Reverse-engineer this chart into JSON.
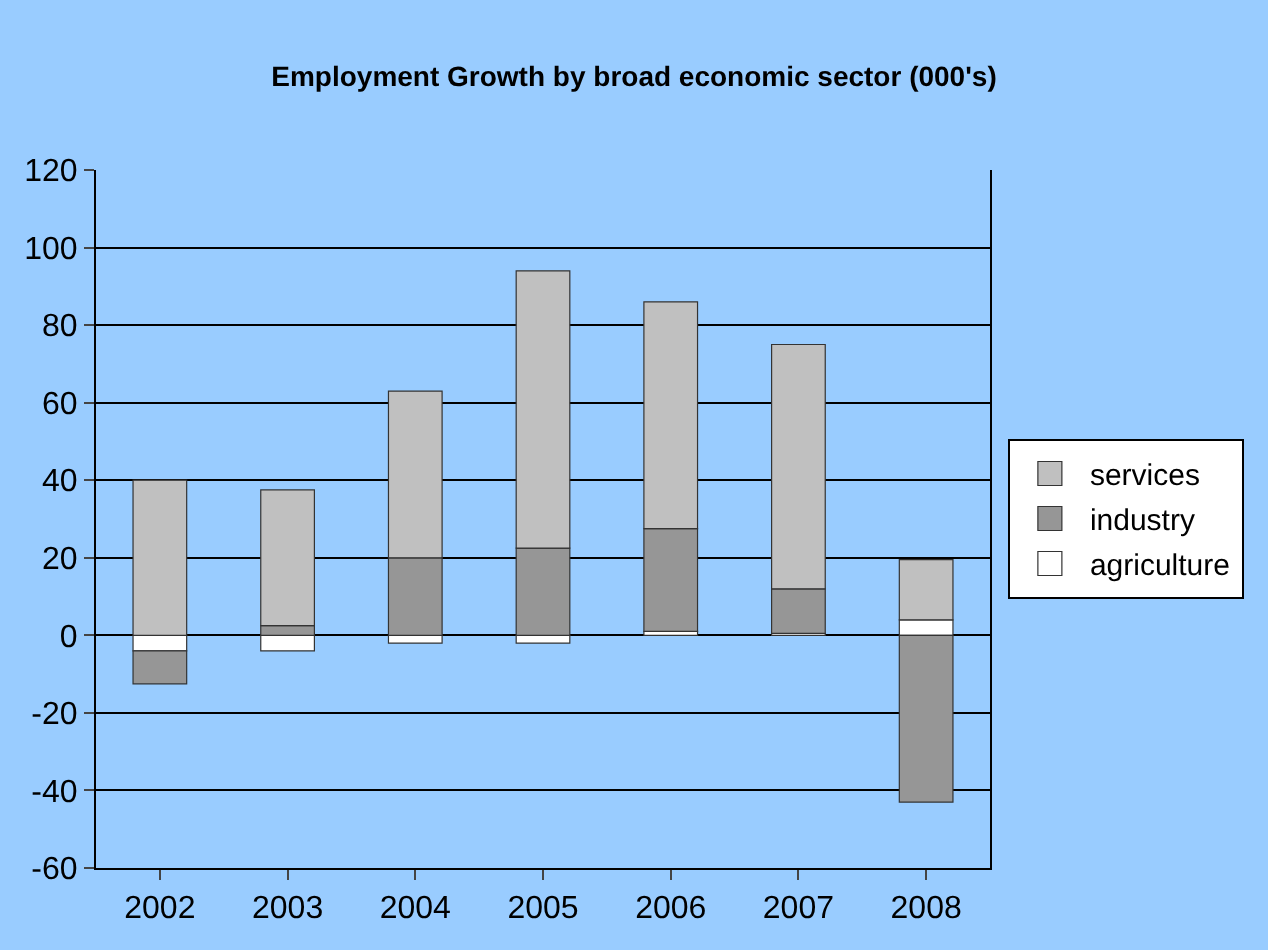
{
  "chart_data": {
    "type": "bar",
    "title": "Employment Growth by broad economic sector (000's)",
    "categories": [
      "2002",
      "2003",
      "2004",
      "2005",
      "2006",
      "2007",
      "2008"
    ],
    "series": [
      {
        "name": "agriculture",
        "color": "#ffffff",
        "values": [
          -4,
          -4,
          -2,
          -2,
          1,
          0.5,
          4
        ]
      },
      {
        "name": "industry",
        "color": "#969696",
        "values": [
          -8.5,
          2.5,
          20,
          22.5,
          26.5,
          11.5,
          -43
        ]
      },
      {
        "name": "services",
        "color": "#c0c0c0",
        "values": [
          40,
          35,
          43,
          71.5,
          58.5,
          63,
          15.5
        ]
      }
    ],
    "stacked": true,
    "ylim": [
      -60,
      120
    ],
    "yticks": [
      -60,
      -40,
      -20,
      0,
      20,
      40,
      60,
      80,
      100,
      120
    ],
    "grid": "y",
    "legend": "right"
  }
}
